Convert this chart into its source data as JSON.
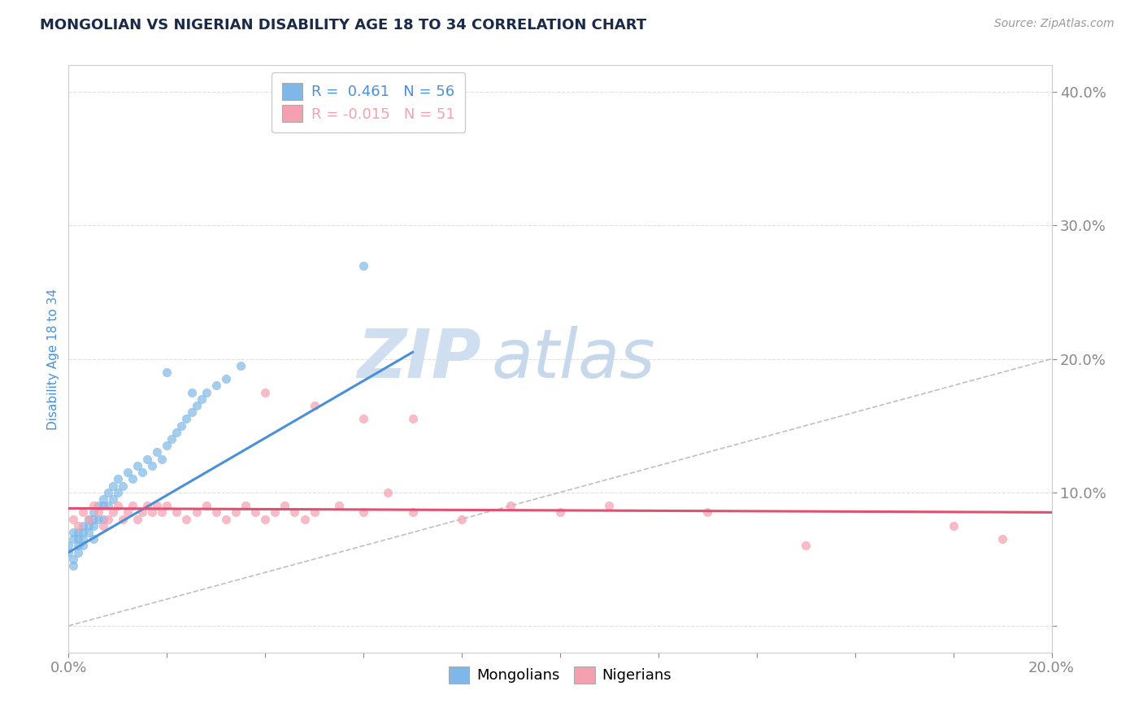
{
  "title": "MONGOLIAN VS NIGERIAN DISABILITY AGE 18 TO 34 CORRELATION CHART",
  "source_text": "Source: ZipAtlas.com",
  "ylabel": "Disability Age 18 to 34",
  "xlim": [
    0.0,
    0.2
  ],
  "ylim": [
    -0.02,
    0.42
  ],
  "xticks": [
    0.0,
    0.02,
    0.04,
    0.06,
    0.08,
    0.1,
    0.12,
    0.14,
    0.16,
    0.18,
    0.2
  ],
  "yticks": [
    0.0,
    0.1,
    0.2,
    0.3,
    0.4
  ],
  "yticklabels": [
    "",
    "10.0%",
    "20.0%",
    "30.0%",
    "40.0%"
  ],
  "mongolian_color": "#7EB8E8",
  "nigerian_color": "#F5A0B0",
  "regression_mongolian_color": "#4A90D9",
  "regression_nigerian_color": "#E05070",
  "diagonal_color": "#AAAAAA",
  "watermark_color": "#D0DFF0",
  "legend_R_mongolian": "0.461",
  "legend_N_mongolian": "56",
  "legend_R_nigerian": "-0.015",
  "legend_N_nigerian": "51",
  "mongolian_x": [
    0.0,
    0.0,
    0.001,
    0.001,
    0.001,
    0.001,
    0.002,
    0.002,
    0.002,
    0.002,
    0.003,
    0.003,
    0.003,
    0.003,
    0.004,
    0.004,
    0.004,
    0.005,
    0.005,
    0.005,
    0.005,
    0.006,
    0.006,
    0.007,
    0.007,
    0.007,
    0.008,
    0.008,
    0.009,
    0.009,
    0.01,
    0.01,
    0.011,
    0.012,
    0.013,
    0.014,
    0.015,
    0.016,
    0.017,
    0.018,
    0.019,
    0.02,
    0.021,
    0.022,
    0.023,
    0.024,
    0.025,
    0.026,
    0.027,
    0.028,
    0.02,
    0.025,
    0.03,
    0.032,
    0.035,
    0.06
  ],
  "mongolian_y": [
    0.06,
    0.055,
    0.065,
    0.05,
    0.07,
    0.045,
    0.06,
    0.065,
    0.07,
    0.055,
    0.065,
    0.07,
    0.075,
    0.06,
    0.07,
    0.075,
    0.08,
    0.065,
    0.075,
    0.08,
    0.085,
    0.08,
    0.09,
    0.08,
    0.09,
    0.095,
    0.09,
    0.1,
    0.095,
    0.105,
    0.1,
    0.11,
    0.105,
    0.115,
    0.11,
    0.12,
    0.115,
    0.125,
    0.12,
    0.13,
    0.125,
    0.135,
    0.14,
    0.145,
    0.15,
    0.155,
    0.16,
    0.165,
    0.17,
    0.175,
    0.19,
    0.175,
    0.18,
    0.185,
    0.195,
    0.27
  ],
  "nigerian_x": [
    0.001,
    0.002,
    0.003,
    0.004,
    0.005,
    0.006,
    0.007,
    0.008,
    0.009,
    0.01,
    0.011,
    0.012,
    0.013,
    0.014,
    0.015,
    0.016,
    0.017,
    0.018,
    0.019,
    0.02,
    0.022,
    0.024,
    0.026,
    0.028,
    0.03,
    0.032,
    0.034,
    0.036,
    0.038,
    0.04,
    0.042,
    0.044,
    0.046,
    0.048,
    0.05,
    0.055,
    0.06,
    0.065,
    0.07,
    0.08,
    0.04,
    0.05,
    0.06,
    0.07,
    0.09,
    0.1,
    0.11,
    0.13,
    0.15,
    0.18,
    0.19
  ],
  "nigerian_y": [
    0.08,
    0.075,
    0.085,
    0.08,
    0.09,
    0.085,
    0.075,
    0.08,
    0.085,
    0.09,
    0.08,
    0.085,
    0.09,
    0.08,
    0.085,
    0.09,
    0.085,
    0.09,
    0.085,
    0.09,
    0.085,
    0.08,
    0.085,
    0.09,
    0.085,
    0.08,
    0.085,
    0.09,
    0.085,
    0.08,
    0.085,
    0.09,
    0.085,
    0.08,
    0.085,
    0.09,
    0.085,
    0.1,
    0.085,
    0.08,
    0.175,
    0.165,
    0.155,
    0.155,
    0.09,
    0.085,
    0.09,
    0.085,
    0.06,
    0.075,
    0.065
  ],
  "background_color": "#FFFFFF",
  "grid_color": "#DDDDDD",
  "title_color": "#1A2B4A",
  "axis_color": "#4A90D9",
  "source_color": "#999999"
}
